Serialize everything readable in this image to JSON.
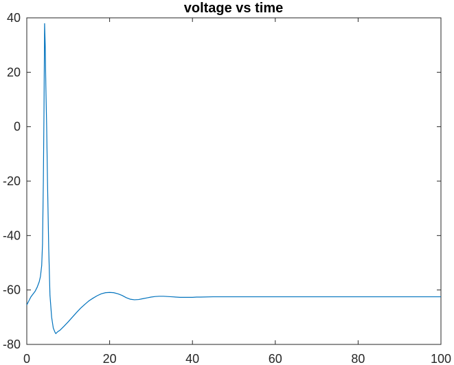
{
  "chart_data": {
    "type": "line",
    "title": "voltage vs time",
    "xlabel": "",
    "ylabel": "",
    "xlim": [
      0,
      100
    ],
    "ylim": [
      -80,
      40
    ],
    "xticks": [
      0,
      20,
      40,
      60,
      80,
      100
    ],
    "yticks": [
      -80,
      -60,
      -40,
      -20,
      0,
      20,
      40
    ],
    "xtick_labels": [
      "0",
      "20",
      "40",
      "60",
      "80",
      "100"
    ],
    "ytick_labels": [
      "-80",
      "-60",
      "-40",
      "-20",
      "0",
      "20",
      "40"
    ],
    "grid": false,
    "legend": "none",
    "series": [
      {
        "color": "#0072BD",
        "x": [
          0,
          0.5,
          1,
          1.5,
          2,
          2.5,
          3,
          3.3,
          3.6,
          3.8,
          4.0,
          4.15,
          4.3,
          4.45,
          4.6,
          4.8,
          5.0,
          5.3,
          5.6,
          6.0,
          6.4,
          6.8,
          7.0,
          7.5,
          8,
          9,
          10,
          11,
          12,
          13,
          14,
          15,
          16,
          17,
          18,
          19,
          20,
          21,
          22,
          23,
          24,
          25,
          26,
          27,
          28,
          29,
          30,
          31,
          32,
          33,
          34,
          35,
          36,
          37,
          38,
          39,
          40,
          41,
          42,
          45,
          50,
          60,
          70,
          80,
          90,
          100
        ],
        "y": [
          -65.5,
          -64,
          -62.5,
          -61.5,
          -60.5,
          -59,
          -57,
          -55,
          -51,
          -43,
          -20,
          5,
          38,
          30,
          15,
          0,
          -20,
          -45,
          -62,
          -70,
          -74,
          -75.5,
          -76,
          -75.3,
          -74.8,
          -73.3,
          -71.7,
          -70,
          -68.3,
          -66.7,
          -65.3,
          -64,
          -63,
          -62.1,
          -61.4,
          -61,
          -60.9,
          -61,
          -61.4,
          -62,
          -62.8,
          -63.4,
          -63.6,
          -63.5,
          -63.2,
          -62.9,
          -62.6,
          -62.4,
          -62.3,
          -62.3,
          -62.4,
          -62.5,
          -62.6,
          -62.7,
          -62.7,
          -62.7,
          -62.7,
          -62.6,
          -62.6,
          -62.5,
          -62.5,
          -62.5,
          -62.5,
          -62.5,
          -62.5,
          -62.5
        ]
      }
    ]
  }
}
